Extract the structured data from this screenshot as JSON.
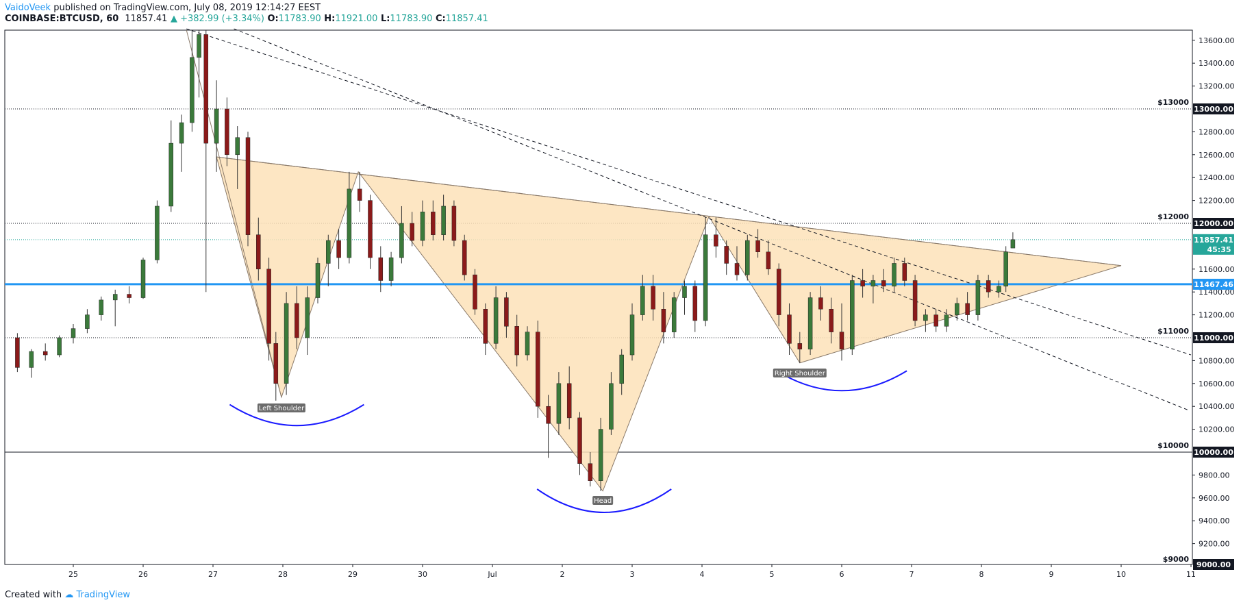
{
  "header": {
    "author": "VaidoVeek",
    "published_text": "published on TradingView.com, July 08, 2019 12:14:27 EEST",
    "symbol": "COINBASE:BTCUSD, 60",
    "last": "11857.41",
    "change": "+382.99 (+3.34%)",
    "open_label": "O:",
    "open": "11783.90",
    "high_label": "H:",
    "high": "11921.00",
    "low_label": "L:",
    "low": "11783.90",
    "close_label": "C:",
    "close": "11857.41"
  },
  "footer": {
    "created_with": "Created with",
    "brand": "TradingView"
  },
  "colors": {
    "up": "#26a69a",
    "down": "#ef5350",
    "candle_up": "#3b7a3b",
    "candle_down": "#8b1a1a",
    "support": "#2196f3",
    "arc": "#1a1aff",
    "pattern_fill": "#fde2b8",
    "pattern_stroke": "#8a7a6a",
    "price_badge": "#26a69a",
    "support_badge": "#2196f3",
    "level_badge": "#131722"
  },
  "chart_data": {
    "type": "candlestick",
    "y_axis": {
      "min": 8950,
      "max": 13700,
      "ticks": [
        "9200.00",
        "9400.00",
        "9600.00",
        "9800.00",
        "10200.00",
        "10400.00",
        "10600.00",
        "10800.00",
        "11200.00",
        "11400.00",
        "11600.00",
        "12200.00",
        "12400.00",
        "12600.00",
        "12800.00",
        "13200.00",
        "13400.00",
        "13600.00"
      ]
    },
    "x_axis": {
      "ticks": [
        {
          "label": "25",
          "day": 25
        },
        {
          "label": "26",
          "day": 26
        },
        {
          "label": "27",
          "day": 27
        },
        {
          "label": "28",
          "day": 28
        },
        {
          "label": "29",
          "day": 29
        },
        {
          "label": "30",
          "day": 30
        },
        {
          "label": "Jul",
          "day": 31
        },
        {
          "label": "2",
          "day": 32
        },
        {
          "label": "3",
          "day": 33
        },
        {
          "label": "4",
          "day": 34
        },
        {
          "label": "5",
          "day": 35
        },
        {
          "label": "6",
          "day": 36
        },
        {
          "label": "7",
          "day": 37
        },
        {
          "label": "8",
          "day": 38
        },
        {
          "label": "9",
          "day": 39
        },
        {
          "label": "10",
          "day": 40
        },
        {
          "label": "11",
          "day": 41
        }
      ]
    },
    "levels": [
      {
        "name": "$13000",
        "value": 13000,
        "badge": "13000.00"
      },
      {
        "name": "$12000",
        "value": 12000,
        "badge": "12000.00"
      },
      {
        "name": "$11000",
        "value": 11000,
        "badge": "11000.00"
      },
      {
        "name": "$10000",
        "value": 10000,
        "badge": "10000.00"
      },
      {
        "name": "$9000",
        "value": 9000,
        "badge": "9000.00"
      }
    ],
    "support": {
      "value": 11467.46,
      "badge": "11467.46"
    },
    "last_price": {
      "value": 11857.41,
      "badge": "11857.41",
      "countdown": "45:35"
    },
    "pattern_labels": {
      "left": "Left Shoulder",
      "head": "Head",
      "right": "Right Shoulder"
    },
    "pattern_polygon": [
      {
        "day": 27.05,
        "price": 12580
      },
      {
        "day": 27.98,
        "price": 10480
      },
      {
        "day": 29.08,
        "price": 12450
      },
      {
        "day": 32.58,
        "price": 9660
      },
      {
        "day": 34.1,
        "price": 12060
      },
      {
        "day": 35.4,
        "price": 10780
      },
      {
        "day": 40.0,
        "price": 11630
      }
    ],
    "neckline": [
      {
        "day": 27.05,
        "price": 12580
      },
      {
        "day": 40.0,
        "price": 11630
      }
    ],
    "trend_lines": [
      [
        {
          "day": 26.62,
          "price": 13700
        },
        {
          "day": 41.0,
          "price": 10850
        }
      ],
      [
        {
          "day": 27.3,
          "price": 13700
        },
        {
          "day": 40.95,
          "price": 10370
        }
      ]
    ],
    "candles": [
      {
        "d": 24.2,
        "o": 11000,
        "h": 11040,
        "l": 10700,
        "c": 10740
      },
      {
        "d": 24.4,
        "o": 10740,
        "h": 10900,
        "l": 10650,
        "c": 10880
      },
      {
        "d": 24.6,
        "o": 10880,
        "h": 10950,
        "l": 10800,
        "c": 10850
      },
      {
        "d": 24.8,
        "o": 10850,
        "h": 11020,
        "l": 10830,
        "c": 11000
      },
      {
        "d": 25.0,
        "o": 11000,
        "h": 11120,
        "l": 10950,
        "c": 11080
      },
      {
        "d": 25.2,
        "o": 11080,
        "h": 11250,
        "l": 11040,
        "c": 11200
      },
      {
        "d": 25.4,
        "o": 11200,
        "h": 11360,
        "l": 11150,
        "c": 11330
      },
      {
        "d": 25.6,
        "o": 11330,
        "h": 11420,
        "l": 11100,
        "c": 11380
      },
      {
        "d": 25.8,
        "o": 11380,
        "h": 11450,
        "l": 11300,
        "c": 11350
      },
      {
        "d": 26.0,
        "o": 11350,
        "h": 11700,
        "l": 11340,
        "c": 11680
      },
      {
        "d": 26.2,
        "o": 11680,
        "h": 12200,
        "l": 11650,
        "c": 12150
      },
      {
        "d": 26.4,
        "o": 12150,
        "h": 12900,
        "l": 12100,
        "c": 12700
      },
      {
        "d": 26.55,
        "o": 12700,
        "h": 12950,
        "l": 12450,
        "c": 12880
      },
      {
        "d": 26.7,
        "o": 12880,
        "h": 13700,
        "l": 12800,
        "c": 13450
      },
      {
        "d": 26.8,
        "o": 13450,
        "h": 13700,
        "l": 13100,
        "c": 13650
      },
      {
        "d": 26.9,
        "o": 13650,
        "h": 13700,
        "l": 11400,
        "c": 12700
      },
      {
        "d": 27.05,
        "o": 12700,
        "h": 13250,
        "l": 12450,
        "c": 13000
      },
      {
        "d": 27.2,
        "o": 13000,
        "h": 13100,
        "l": 12500,
        "c": 12600
      },
      {
        "d": 27.35,
        "o": 12600,
        "h": 12850,
        "l": 12300,
        "c": 12750
      },
      {
        "d": 27.5,
        "o": 12750,
        "h": 12800,
        "l": 11800,
        "c": 11900
      },
      {
        "d": 27.65,
        "o": 11900,
        "h": 12050,
        "l": 11500,
        "c": 11600
      },
      {
        "d": 27.8,
        "o": 11600,
        "h": 11700,
        "l": 10800,
        "c": 10950
      },
      {
        "d": 27.9,
        "o": 10950,
        "h": 11050,
        "l": 10450,
        "c": 10600
      },
      {
        "d": 28.05,
        "o": 10600,
        "h": 11400,
        "l": 10500,
        "c": 11300
      },
      {
        "d": 28.2,
        "o": 11300,
        "h": 11450,
        "l": 10900,
        "c": 11000
      },
      {
        "d": 28.35,
        "o": 11000,
        "h": 11450,
        "l": 10850,
        "c": 11350
      },
      {
        "d": 28.5,
        "o": 11350,
        "h": 11700,
        "l": 11300,
        "c": 11650
      },
      {
        "d": 28.65,
        "o": 11650,
        "h": 11900,
        "l": 11450,
        "c": 11850
      },
      {
        "d": 28.8,
        "o": 11850,
        "h": 11950,
        "l": 11600,
        "c": 11700
      },
      {
        "d": 28.95,
        "o": 11700,
        "h": 12450,
        "l": 11650,
        "c": 12300
      },
      {
        "d": 29.1,
        "o": 12300,
        "h": 12450,
        "l": 12100,
        "c": 12200
      },
      {
        "d": 29.25,
        "o": 12200,
        "h": 12250,
        "l": 11600,
        "c": 11700
      },
      {
        "d": 29.4,
        "o": 11700,
        "h": 11800,
        "l": 11400,
        "c": 11500
      },
      {
        "d": 29.55,
        "o": 11500,
        "h": 11750,
        "l": 11450,
        "c": 11700
      },
      {
        "d": 29.7,
        "o": 11700,
        "h": 12150,
        "l": 11650,
        "c": 12000
      },
      {
        "d": 29.85,
        "o": 12000,
        "h": 12100,
        "l": 11800,
        "c": 11850
      },
      {
        "d": 30.0,
        "o": 11850,
        "h": 12200,
        "l": 11800,
        "c": 12100
      },
      {
        "d": 30.15,
        "o": 12100,
        "h": 12200,
        "l": 11850,
        "c": 11900
      },
      {
        "d": 30.3,
        "o": 11900,
        "h": 12250,
        "l": 11850,
        "c": 12150
      },
      {
        "d": 30.45,
        "o": 12150,
        "h": 12200,
        "l": 11800,
        "c": 11850
      },
      {
        "d": 30.6,
        "o": 11850,
        "h": 11900,
        "l": 11500,
        "c": 11550
      },
      {
        "d": 30.75,
        "o": 11550,
        "h": 11600,
        "l": 11200,
        "c": 11250
      },
      {
        "d": 30.9,
        "o": 11250,
        "h": 11300,
        "l": 10850,
        "c": 10950
      },
      {
        "d": 31.05,
        "o": 10950,
        "h": 11450,
        "l": 10900,
        "c": 11350
      },
      {
        "d": 31.2,
        "o": 11350,
        "h": 11400,
        "l": 11000,
        "c": 11100
      },
      {
        "d": 31.35,
        "o": 11100,
        "h": 11200,
        "l": 10750,
        "c": 10850
      },
      {
        "d": 31.5,
        "o": 10850,
        "h": 11100,
        "l": 10800,
        "c": 11050
      },
      {
        "d": 31.65,
        "o": 11050,
        "h": 11150,
        "l": 10300,
        "c": 10400
      },
      {
        "d": 31.8,
        "o": 10400,
        "h": 10500,
        "l": 9950,
        "c": 10250
      },
      {
        "d": 31.95,
        "o": 10250,
        "h": 10700,
        "l": 10150,
        "c": 10600
      },
      {
        "d": 32.1,
        "o": 10600,
        "h": 10750,
        "l": 10200,
        "c": 10300
      },
      {
        "d": 32.25,
        "o": 10300,
        "h": 10350,
        "l": 9800,
        "c": 9900
      },
      {
        "d": 32.4,
        "o": 9900,
        "h": 10000,
        "l": 9700,
        "c": 9750
      },
      {
        "d": 32.55,
        "o": 9750,
        "h": 10300,
        "l": 9660,
        "c": 10200
      },
      {
        "d": 32.7,
        "o": 10200,
        "h": 10700,
        "l": 10150,
        "c": 10600
      },
      {
        "d": 32.85,
        "o": 10600,
        "h": 10900,
        "l": 10500,
        "c": 10850
      },
      {
        "d": 33.0,
        "o": 10850,
        "h": 11300,
        "l": 10800,
        "c": 11200
      },
      {
        "d": 33.15,
        "o": 11200,
        "h": 11550,
        "l": 11150,
        "c": 11450
      },
      {
        "d": 33.3,
        "o": 11450,
        "h": 11550,
        "l": 11150,
        "c": 11250
      },
      {
        "d": 33.45,
        "o": 11250,
        "h": 11400,
        "l": 10950,
        "c": 11050
      },
      {
        "d": 33.6,
        "o": 11050,
        "h": 11400,
        "l": 11000,
        "c": 11350
      },
      {
        "d": 33.75,
        "o": 11350,
        "h": 11500,
        "l": 11200,
        "c": 11450
      },
      {
        "d": 33.9,
        "o": 11450,
        "h": 11500,
        "l": 11050,
        "c": 11150
      },
      {
        "d": 34.05,
        "o": 11150,
        "h": 12050,
        "l": 11100,
        "c": 11900
      },
      {
        "d": 34.2,
        "o": 11900,
        "h": 12050,
        "l": 11700,
        "c": 11800
      },
      {
        "d": 34.35,
        "o": 11800,
        "h": 11850,
        "l": 11550,
        "c": 11650
      },
      {
        "d": 34.5,
        "o": 11650,
        "h": 11800,
        "l": 11500,
        "c": 11550
      },
      {
        "d": 34.65,
        "o": 11550,
        "h": 11900,
        "l": 11500,
        "c": 11850
      },
      {
        "d": 34.8,
        "o": 11850,
        "h": 11950,
        "l": 11700,
        "c": 11750
      },
      {
        "d": 34.95,
        "o": 11750,
        "h": 11850,
        "l": 11550,
        "c": 11600
      },
      {
        "d": 35.1,
        "o": 11600,
        "h": 11650,
        "l": 11100,
        "c": 11200
      },
      {
        "d": 35.25,
        "o": 11200,
        "h": 11300,
        "l": 10850,
        "c": 10950
      },
      {
        "d": 35.4,
        "o": 10950,
        "h": 11050,
        "l": 10780,
        "c": 10900
      },
      {
        "d": 35.55,
        "o": 10900,
        "h": 11400,
        "l": 10850,
        "c": 11350
      },
      {
        "d": 35.7,
        "o": 11350,
        "h": 11450,
        "l": 11150,
        "c": 11250
      },
      {
        "d": 35.85,
        "o": 11250,
        "h": 11350,
        "l": 10950,
        "c": 11050
      },
      {
        "d": 36.0,
        "o": 11050,
        "h": 11300,
        "l": 10800,
        "c": 10900
      },
      {
        "d": 36.15,
        "o": 10900,
        "h": 11550,
        "l": 10850,
        "c": 11500
      },
      {
        "d": 36.3,
        "o": 11500,
        "h": 11600,
        "l": 11350,
        "c": 11450
      },
      {
        "d": 36.45,
        "o": 11450,
        "h": 11550,
        "l": 11300,
        "c": 11500
      },
      {
        "d": 36.6,
        "o": 11500,
        "h": 11600,
        "l": 11400,
        "c": 11450
      },
      {
        "d": 36.75,
        "o": 11450,
        "h": 11700,
        "l": 11400,
        "c": 11650
      },
      {
        "d": 36.9,
        "o": 11650,
        "h": 11700,
        "l": 11450,
        "c": 11500
      },
      {
        "d": 37.05,
        "o": 11500,
        "h": 11550,
        "l": 11100,
        "c": 11150
      },
      {
        "d": 37.2,
        "o": 11150,
        "h": 11250,
        "l": 11050,
        "c": 11200
      },
      {
        "d": 37.35,
        "o": 11200,
        "h": 11250,
        "l": 11050,
        "c": 11100
      },
      {
        "d": 37.5,
        "o": 11100,
        "h": 11250,
        "l": 11050,
        "c": 11200
      },
      {
        "d": 37.65,
        "o": 11200,
        "h": 11350,
        "l": 11150,
        "c": 11300
      },
      {
        "d": 37.8,
        "o": 11300,
        "h": 11400,
        "l": 11150,
        "c": 11200
      },
      {
        "d": 37.95,
        "o": 11200,
        "h": 11550,
        "l": 11150,
        "c": 11500
      },
      {
        "d": 38.1,
        "o": 11500,
        "h": 11550,
        "l": 11350,
        "c": 11400
      },
      {
        "d": 38.25,
        "o": 11400,
        "h": 11500,
        "l": 11350,
        "c": 11450
      },
      {
        "d": 38.35,
        "o": 11450,
        "h": 11800,
        "l": 11400,
        "c": 11750
      },
      {
        "d": 38.45,
        "o": 11783.9,
        "h": 11921,
        "l": 11783.9,
        "c": 11857.41
      }
    ]
  }
}
